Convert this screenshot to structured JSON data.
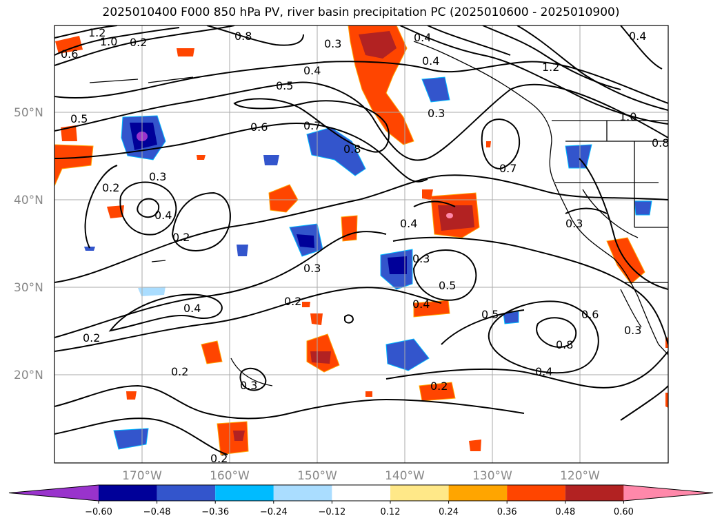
{
  "title": "2025010400 F000 850 hPa PV, river basin precipitation PC (2025010600 - 2025010900)",
  "lat_labels": [
    "50°N",
    "40°N",
    "30°N",
    "20°N"
  ],
  "lon_labels": [
    "170°W",
    "160°W",
    "150°W",
    "140°W",
    "130°W",
    "120°W"
  ],
  "contour_labels": [
    "0.3",
    "0.4",
    "0.5",
    "0.6",
    "0.7",
    "0.8",
    "0.5",
    "0.2",
    "0.3",
    "0.4",
    "0.2",
    "0.3",
    "0.2",
    "0.4",
    "0.2",
    "0.2",
    "0.3",
    "0.3",
    "0.4",
    "0.5",
    "0.4",
    "0.5",
    "0.6",
    "0.8",
    "0.4",
    "0.2",
    "0.3",
    "0.7",
    "1.0",
    "0.3",
    "0.2",
    "0.6",
    "0.2",
    "0.4",
    "0.4",
    "0.3",
    "1.0",
    "1.2",
    "0.8",
    "1.2",
    "0.4",
    "0.8"
  ],
  "colorbar": {
    "colors": [
      "#9933cc",
      "#000099",
      "#3355cc",
      "#00bbff",
      "#aaddff",
      "#ffffff",
      "#ffe888",
      "#ffa500",
      "#ff4500",
      "#b22222",
      "#ff88aa"
    ],
    "ticks": [
      "−0.60",
      "−0.48",
      "−0.36",
      "−0.24",
      "−0.12",
      "0.12",
      "0.24",
      "0.36",
      "0.48",
      "0.60"
    ]
  }
}
